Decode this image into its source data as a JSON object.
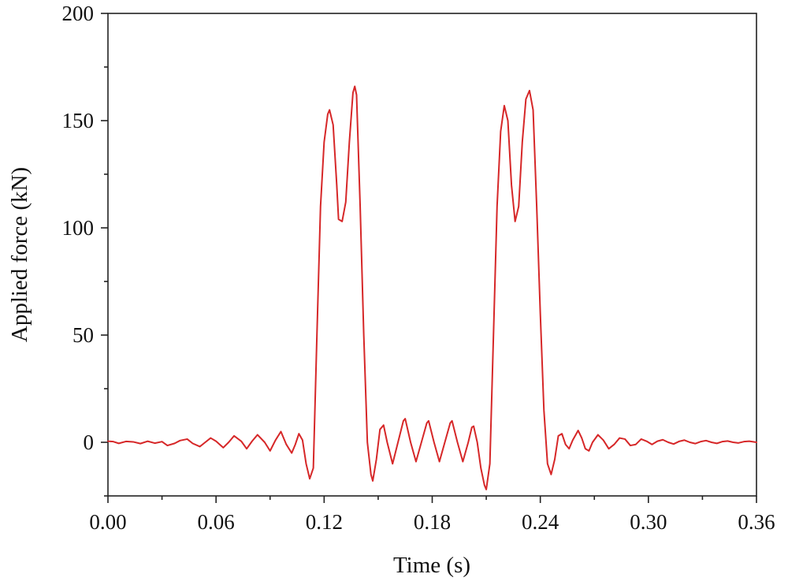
{
  "chart_data": {
    "type": "line",
    "title": "",
    "xlabel": "Time (s)",
    "ylabel": "Applied force (kN)",
    "xlim": [
      0,
      0.36
    ],
    "ylim": [
      -25,
      200
    ],
    "xticks": [
      0.0,
      0.06,
      0.12,
      0.18,
      0.24,
      0.3,
      0.36
    ],
    "xtick_labels": [
      "0.00",
      "0.06",
      "0.12",
      "0.18",
      "0.24",
      "0.30",
      "0.36"
    ],
    "yticks": [
      0,
      50,
      100,
      150,
      200
    ],
    "ytick_labels": [
      "0",
      "50",
      "100",
      "150",
      "200"
    ],
    "x_minor_step": 0.03,
    "grid": false,
    "legend": "none",
    "series": [
      {
        "color": "#d62728",
        "points": [
          [
            0.0,
            0.5
          ],
          [
            0.003,
            0.3
          ],
          [
            0.006,
            -0.5
          ],
          [
            0.01,
            0.4
          ],
          [
            0.014,
            0.2
          ],
          [
            0.018,
            -0.6
          ],
          [
            0.022,
            0.5
          ],
          [
            0.026,
            -0.4
          ],
          [
            0.03,
            0.3
          ],
          [
            0.033,
            -1.5
          ],
          [
            0.037,
            -0.5
          ],
          [
            0.04,
            0.8
          ],
          [
            0.044,
            1.5
          ],
          [
            0.047,
            -0.5
          ],
          [
            0.051,
            -2.0
          ],
          [
            0.054,
            0.0
          ],
          [
            0.057,
            2.0
          ],
          [
            0.06,
            0.5
          ],
          [
            0.064,
            -2.5
          ],
          [
            0.067,
            0.0
          ],
          [
            0.07,
            3.0
          ],
          [
            0.074,
            0.5
          ],
          [
            0.077,
            -3.0
          ],
          [
            0.08,
            0.5
          ],
          [
            0.083,
            3.5
          ],
          [
            0.087,
            0.0
          ],
          [
            0.09,
            -4.0
          ],
          [
            0.093,
            1.0
          ],
          [
            0.096,
            5.0
          ],
          [
            0.099,
            -1.0
          ],
          [
            0.102,
            -5.0
          ],
          [
            0.104,
            -1.0
          ],
          [
            0.106,
            4.0
          ],
          [
            0.108,
            1.0
          ],
          [
            0.11,
            -10.0
          ],
          [
            0.112,
            -17.0
          ],
          [
            0.114,
            -12.0
          ],
          [
            0.116,
            50.0
          ],
          [
            0.118,
            110.0
          ],
          [
            0.12,
            140.0
          ],
          [
            0.122,
            153.0
          ],
          [
            0.123,
            155.0
          ],
          [
            0.125,
            148.0
          ],
          [
            0.127,
            120.0
          ],
          [
            0.128,
            104.0
          ],
          [
            0.13,
            103.0
          ],
          [
            0.132,
            112.0
          ],
          [
            0.134,
            140.0
          ],
          [
            0.136,
            163.0
          ],
          [
            0.137,
            166.0
          ],
          [
            0.138,
            162.0
          ],
          [
            0.14,
            110.0
          ],
          [
            0.142,
            50.0
          ],
          [
            0.144,
            0.0
          ],
          [
            0.146,
            -15.0
          ],
          [
            0.147,
            -18.0
          ],
          [
            0.149,
            -8.0
          ],
          [
            0.151,
            6.0
          ],
          [
            0.153,
            8.0
          ],
          [
            0.155,
            0.0
          ],
          [
            0.158,
            -10.0
          ],
          [
            0.161,
            0.0
          ],
          [
            0.164,
            10.0
          ],
          [
            0.165,
            11.0
          ],
          [
            0.168,
            0.0
          ],
          [
            0.171,
            -9.0
          ],
          [
            0.174,
            0.0
          ],
          [
            0.177,
            9.0
          ],
          [
            0.178,
            10.0
          ],
          [
            0.181,
            0.0
          ],
          [
            0.184,
            -9.0
          ],
          [
            0.187,
            0.0
          ],
          [
            0.19,
            9.0
          ],
          [
            0.191,
            10.0
          ],
          [
            0.194,
            0.0
          ],
          [
            0.197,
            -9.0
          ],
          [
            0.2,
            0.0
          ],
          [
            0.202,
            7.0
          ],
          [
            0.203,
            7.5
          ],
          [
            0.205,
            0.0
          ],
          [
            0.207,
            -12.0
          ],
          [
            0.209,
            -20.0
          ],
          [
            0.21,
            -22.0
          ],
          [
            0.212,
            -10.0
          ],
          [
            0.214,
            50.0
          ],
          [
            0.216,
            110.0
          ],
          [
            0.218,
            145.0
          ],
          [
            0.22,
            157.0
          ],
          [
            0.222,
            150.0
          ],
          [
            0.224,
            120.0
          ],
          [
            0.226,
            103.0
          ],
          [
            0.228,
            110.0
          ],
          [
            0.23,
            140.0
          ],
          [
            0.232,
            160.0
          ],
          [
            0.234,
            164.0
          ],
          [
            0.236,
            155.0
          ],
          [
            0.238,
            110.0
          ],
          [
            0.24,
            60.0
          ],
          [
            0.242,
            15.0
          ],
          [
            0.244,
            -10.0
          ],
          [
            0.246,
            -15.0
          ],
          [
            0.248,
            -8.0
          ],
          [
            0.25,
            3.0
          ],
          [
            0.252,
            4.0
          ],
          [
            0.254,
            -1.0
          ],
          [
            0.256,
            -3.0
          ],
          [
            0.258,
            1.0
          ],
          [
            0.26,
            4.0
          ],
          [
            0.261,
            5.5
          ],
          [
            0.263,
            2.0
          ],
          [
            0.265,
            -3.0
          ],
          [
            0.267,
            -4.0
          ],
          [
            0.269,
            0.0
          ],
          [
            0.272,
            3.5
          ],
          [
            0.275,
            1.0
          ],
          [
            0.278,
            -3.0
          ],
          [
            0.281,
            -1.0
          ],
          [
            0.284,
            2.0
          ],
          [
            0.287,
            1.5
          ],
          [
            0.29,
            -1.5
          ],
          [
            0.293,
            -1.0
          ],
          [
            0.296,
            1.5
          ],
          [
            0.299,
            0.5
          ],
          [
            0.302,
            -1.0
          ],
          [
            0.305,
            0.5
          ],
          [
            0.308,
            1.2
          ],
          [
            0.311,
            0.0
          ],
          [
            0.314,
            -0.8
          ],
          [
            0.317,
            0.4
          ],
          [
            0.32,
            1.0
          ],
          [
            0.323,
            0.0
          ],
          [
            0.326,
            -0.6
          ],
          [
            0.329,
            0.3
          ],
          [
            0.332,
            0.8
          ],
          [
            0.335,
            0.0
          ],
          [
            0.338,
            -0.5
          ],
          [
            0.341,
            0.3
          ],
          [
            0.344,
            0.6
          ],
          [
            0.347,
            0.0
          ],
          [
            0.35,
            -0.3
          ],
          [
            0.353,
            0.3
          ],
          [
            0.356,
            0.5
          ],
          [
            0.36,
            0.0
          ]
        ]
      }
    ]
  }
}
